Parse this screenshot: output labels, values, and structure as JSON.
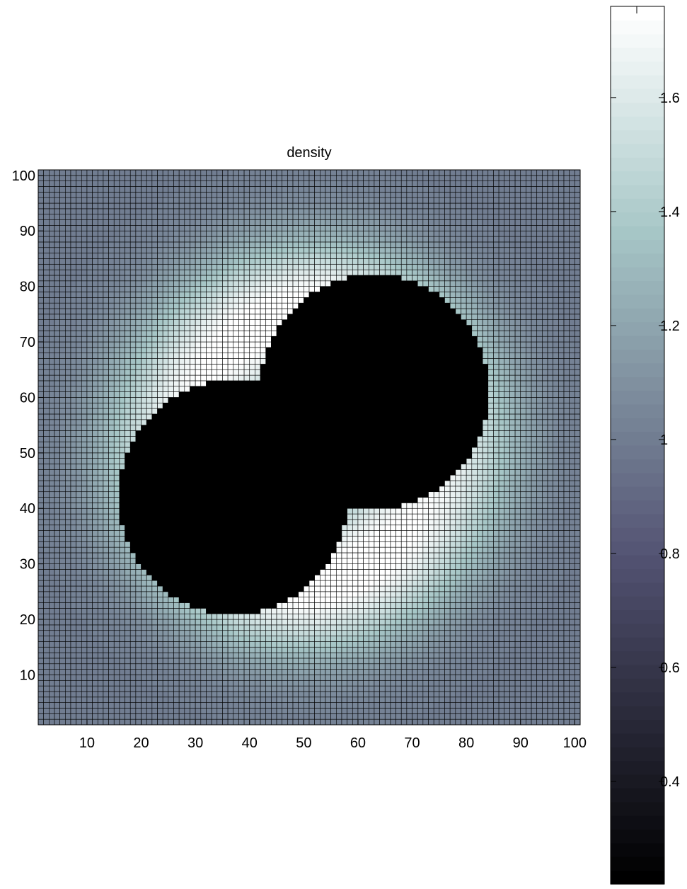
{
  "chart_data": {
    "type": "heatmap",
    "title": "density",
    "xlabel": "",
    "ylabel": "",
    "xlim": [
      1,
      101
    ],
    "ylim": [
      1,
      101
    ],
    "grid_size": [
      100,
      100
    ],
    "x_ticks": [
      10,
      20,
      30,
      40,
      50,
      60,
      70,
      80,
      90,
      100
    ],
    "y_ticks": [
      10,
      20,
      30,
      40,
      50,
      60,
      70,
      80,
      90,
      100
    ],
    "x_tick_labels": [
      "10",
      "20",
      "30",
      "40",
      "50",
      "60",
      "70",
      "80",
      "90",
      "100"
    ],
    "y_tick_labels": [
      "10",
      "20",
      "30",
      "40",
      "50",
      "60",
      "70",
      "80",
      "90",
      "100"
    ],
    "colorbar": {
      "colormap": "bone",
      "range": [
        0.22,
        1.76
      ],
      "ticks": [
        0.4,
        0.6,
        0.8,
        1,
        1.2,
        1.4,
        1.6
      ],
      "tick_labels": [
        "0.4",
        "0.6",
        "0.8",
        "1",
        "1.2",
        "1.4",
        "1.6"
      ],
      "levels": 64
    },
    "field": {
      "description_values": {
        "background_density": 1.0,
        "ring_peak_density": 1.76,
        "inner_core_density": 0.22
      },
      "ring_radius": 35,
      "ring_center": [
        51,
        51
      ],
      "core_lobes": [
        {
          "cx": 37,
          "cy": 42,
          "r": 21
        },
        {
          "cx": 63,
          "cy": 61,
          "r": 21
        }
      ]
    },
    "cell_edges": "black"
  }
}
